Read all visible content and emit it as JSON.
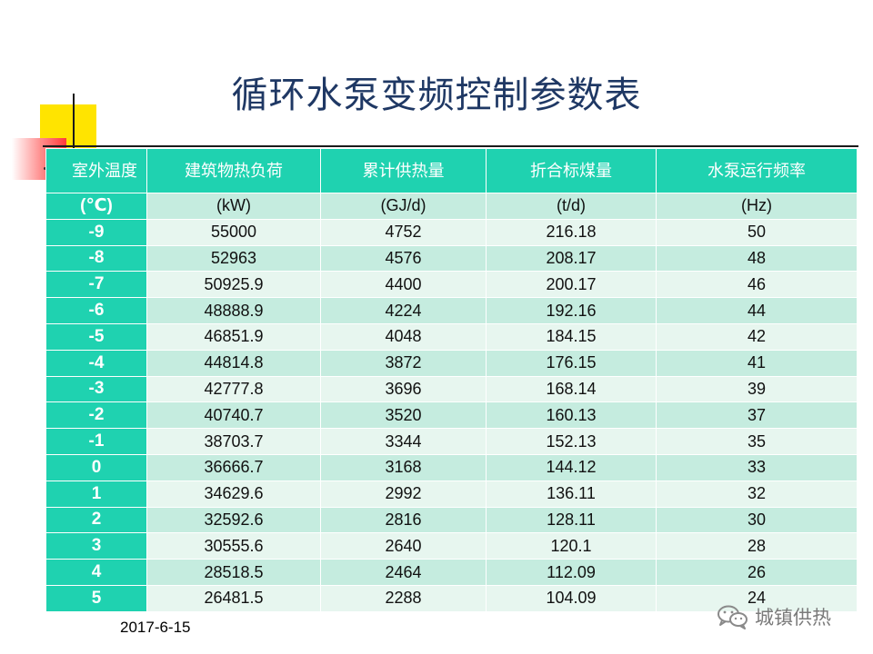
{
  "title": "循环水泵变频控制参数表",
  "table": {
    "headers": [
      "室外温度",
      "建筑物热负荷",
      "累计供热量",
      "折合标煤量",
      "水泵运行频率"
    ],
    "units": [
      "(℃)",
      "(kW)",
      "(GJ/d)",
      "(t/d)",
      "(Hz)"
    ],
    "rows": [
      [
        "-9",
        "55000",
        "4752",
        "216.18",
        "50"
      ],
      [
        "-8",
        "52963",
        "4576",
        "208.17",
        "48"
      ],
      [
        "-7",
        "50925.9",
        "4400",
        "200.17",
        "46"
      ],
      [
        "-6",
        "48888.9",
        "4224",
        "192.16",
        "44"
      ],
      [
        "-5",
        "46851.9",
        "4048",
        "184.15",
        "42"
      ],
      [
        "-4",
        "44814.8",
        "3872",
        "176.15",
        "41"
      ],
      [
        "-3",
        "42777.8",
        "3696",
        "168.14",
        "39"
      ],
      [
        "-2",
        "40740.7",
        "3520",
        "160.13",
        "37"
      ],
      [
        "-1",
        "38703.7",
        "3344",
        "152.13",
        "35"
      ],
      [
        "0",
        "36666.7",
        "3168",
        "144.12",
        "33"
      ],
      [
        "1",
        "34629.6",
        "2992",
        "136.11",
        "32"
      ],
      [
        "2",
        "32592.6",
        "2816",
        "128.11",
        "30"
      ],
      [
        "3",
        "30555.6",
        "2640",
        "120.1",
        "28"
      ],
      [
        "4",
        "28518.5",
        "2464",
        "112.09",
        "26"
      ],
      [
        "5",
        "26481.5",
        "2288",
        "104.09",
        "24"
      ]
    ]
  },
  "footer": {
    "date": "2017-6-15",
    "watermark_icon": "wechat-icon",
    "watermark_text": "城镇供热"
  },
  "colors": {
    "header_teal": "#1fd2b0",
    "row_dark": "#c5ecdf",
    "row_light": "#e7f6ef",
    "title": "#1f3864"
  }
}
